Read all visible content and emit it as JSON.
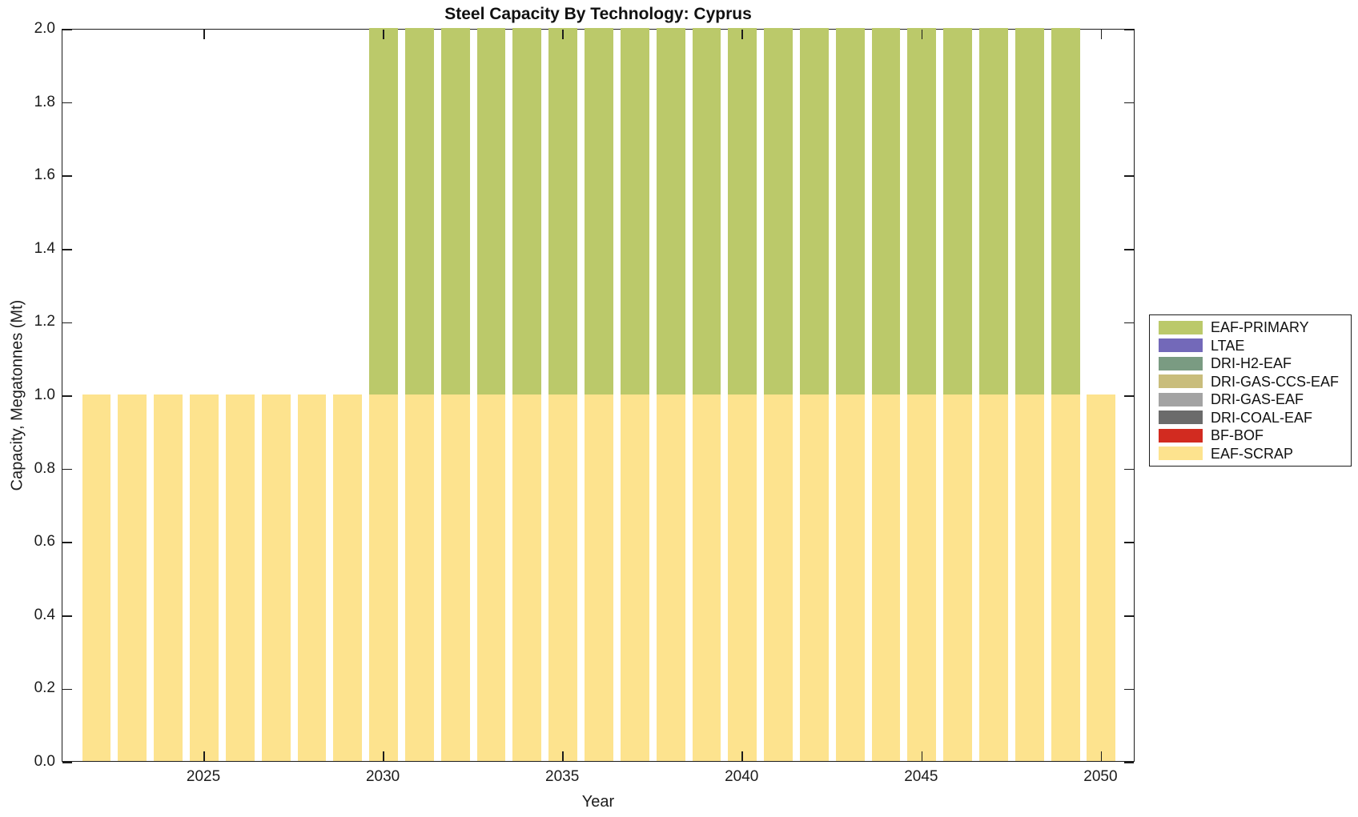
{
  "figure": {
    "background": "#ffffff",
    "axis_color": "#1c1c1c"
  },
  "chart_data": {
    "type": "bar",
    "stacked": true,
    "title": "Steel Capacity By Technology: Cyprus",
    "xlabel": "Year",
    "ylabel": "Capacity, Megatonnes (Mt)",
    "x": [
      2022,
      2023,
      2024,
      2025,
      2026,
      2027,
      2028,
      2029,
      2030,
      2031,
      2032,
      2033,
      2034,
      2035,
      2036,
      2037,
      2038,
      2039,
      2040,
      2041,
      2042,
      2043,
      2044,
      2045,
      2046,
      2047,
      2048,
      2049,
      2050
    ],
    "series": [
      {
        "name": "EAF-SCRAP",
        "color": "#fde38e",
        "values": [
          1,
          1,
          1,
          1,
          1,
          1,
          1,
          1,
          1,
          1,
          1,
          1,
          1,
          1,
          1,
          1,
          1,
          1,
          1,
          1,
          1,
          1,
          1,
          1,
          1,
          1,
          1,
          1,
          1
        ]
      },
      {
        "name": "EAF-PRIMARY",
        "color": "#bbc96a",
        "values": [
          0,
          0,
          0,
          0,
          0,
          0,
          0,
          0,
          1,
          1,
          1,
          1,
          1,
          1,
          1,
          1,
          1,
          1,
          1,
          1,
          1,
          1,
          1,
          1,
          1,
          1,
          1,
          1,
          0
        ]
      }
    ],
    "ylim": [
      0,
      2
    ],
    "xlim": [
      2021.05,
      2050.95
    ],
    "bar_width_years": 0.8,
    "ytick_values": [
      0,
      0.2,
      0.4,
      0.6,
      0.8,
      1,
      1.2,
      1.4,
      1.6,
      1.8,
      2
    ],
    "ytick_labels": [
      "0.0",
      "0.2",
      "0.4",
      "0.6",
      "0.8",
      "1.0",
      "1.2",
      "1.4",
      "1.6",
      "1.8",
      "2.0"
    ],
    "xtick_values": [
      2025,
      2030,
      2035,
      2040,
      2045,
      2050
    ],
    "xtick_labels": [
      "2025",
      "2030",
      "2035",
      "2040",
      "2045",
      "2050"
    ],
    "grid": false,
    "legend_position": "right-outside",
    "legend": [
      {
        "label": "EAF-PRIMARY",
        "color": "#bbc96a"
      },
      {
        "label": "LTAE",
        "color": "#7369b9"
      },
      {
        "label": "DRI-H2-EAF",
        "color": "#7a9b82"
      },
      {
        "label": "DRI-GAS-CCS-EAF",
        "color": "#c9bd7c"
      },
      {
        "label": "DRI-GAS-EAF",
        "color": "#a3a3a3"
      },
      {
        "label": "DRI-COAL-EAF",
        "color": "#6b6b6b"
      },
      {
        "label": "BF-BOF",
        "color": "#d22b20"
      },
      {
        "label": "EAF-SCRAP",
        "color": "#fde38e"
      }
    ]
  }
}
